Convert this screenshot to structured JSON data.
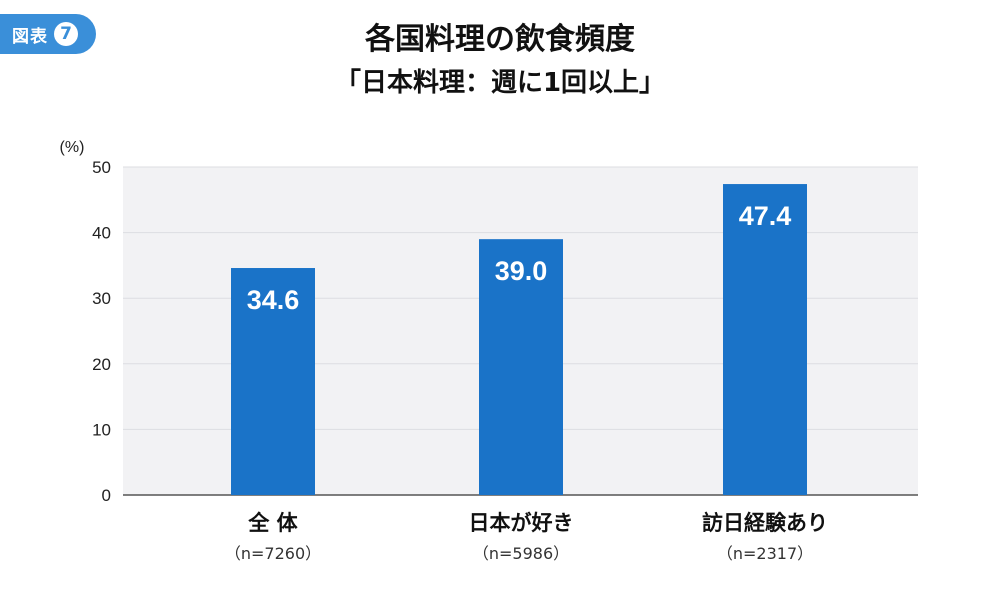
{
  "badge": {
    "label": "図表",
    "number": "7"
  },
  "chart_data": {
    "type": "bar",
    "title": "各国料理の飲食頻度",
    "subtitle": "「日本料理：週に1回以上」",
    "unit_label": "(%)",
    "ylim": [
      0,
      50
    ],
    "yticks": [
      0,
      10,
      20,
      30,
      40,
      50
    ],
    "grid": true,
    "categories": [
      "全 体",
      "日本が好き",
      "訪日経験あり"
    ],
    "sample_sizes": [
      "（n=7260）",
      "（n=5986）",
      "（n=2317）"
    ],
    "values": [
      34.6,
      39.0,
      47.4
    ],
    "value_labels": [
      "34.6",
      "39.0",
      "47.4"
    ],
    "bar_color": "#1a73c8",
    "plot_background": "#f2f2f4"
  }
}
